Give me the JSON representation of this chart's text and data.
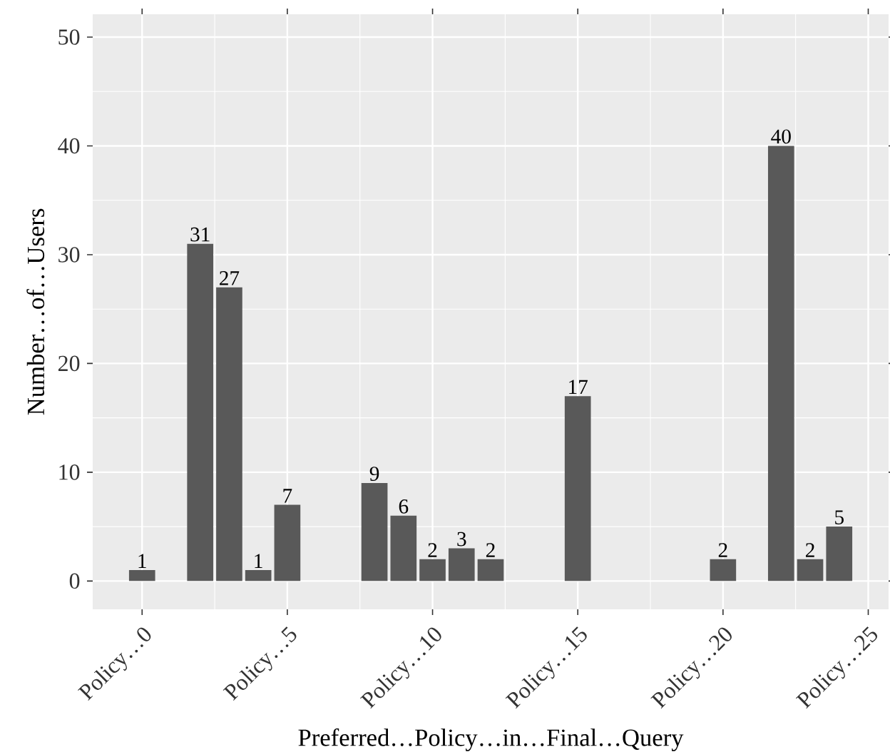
{
  "chart_data": {
    "type": "bar",
    "xlabel": "Preferred…Policy…in…Final…Query",
    "ylabel": "Number…of…Users",
    "x": [
      0,
      2,
      3,
      4,
      5,
      8,
      9,
      10,
      11,
      12,
      15,
      20,
      22,
      23,
      24
    ],
    "values": [
      1,
      31,
      27,
      1,
      7,
      9,
      6,
      2,
      3,
      2,
      17,
      2,
      40,
      2,
      5
    ],
    "color": "#595959",
    "xlim": [
      -1.7,
      25.7
    ],
    "ylim": [
      -2.6,
      52.1
    ],
    "xticks": [
      {
        "value": 0,
        "label": "Policy…0"
      },
      {
        "value": 5,
        "label": "Policy…5"
      },
      {
        "value": 10,
        "label": "Policy…10"
      },
      {
        "value": 15,
        "label": "Policy…15"
      },
      {
        "value": 20,
        "label": "Policy…20"
      },
      {
        "value": 25,
        "label": "Policy…25"
      }
    ],
    "yticks": [
      0,
      10,
      20,
      30,
      40,
      50
    ],
    "grid": true,
    "data_labels": true
  }
}
